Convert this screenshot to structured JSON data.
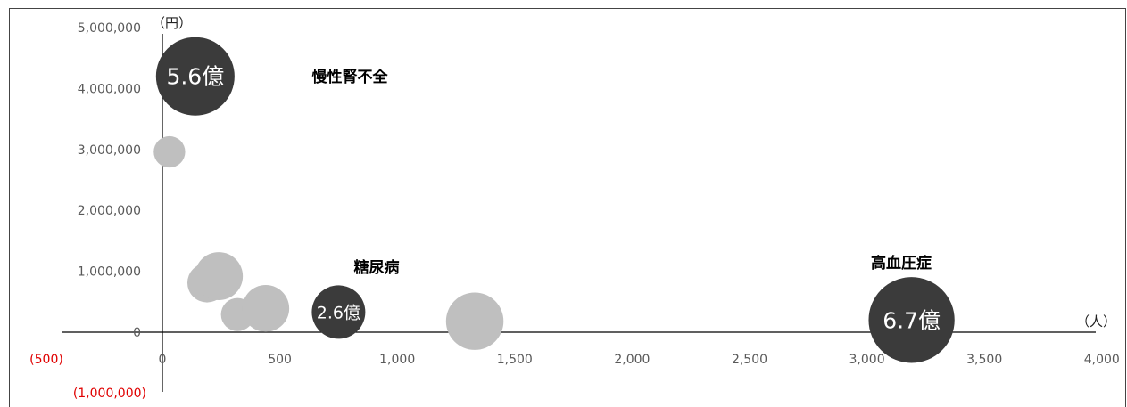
{
  "chart_data": {
    "type": "bubble",
    "x_unit": "（人）",
    "y_unit": "（円）",
    "xlim": [
      -500,
      4000
    ],
    "ylim": [
      -1000000,
      5000000
    ],
    "x_ticks": [
      "(500)",
      "0",
      "500",
      "1,000",
      "1,500",
      "2,000",
      "2,500",
      "3,000",
      "3,500",
      "4,000"
    ],
    "y_ticks": [
      "(1,000,000)",
      "0",
      "1,000,000",
      "2,000,000",
      "3,000,000",
      "4,000,000",
      "5,000,000"
    ],
    "colors": {
      "highlight": "#3b3b3b",
      "other": "#bfbfbf",
      "negative_tick": "#e00000",
      "tick": "#595959",
      "axis": "#000000"
    },
    "points": [
      {
        "x": 140,
        "y": 4200000,
        "size": 5.6,
        "highlight": true,
        "bubble_label": "5.6億",
        "callout": "慢性腎不全"
      },
      {
        "x": 750,
        "y": 330000,
        "size": 2.6,
        "highlight": true,
        "bubble_label": "2.6億",
        "callout": "糖尿病"
      },
      {
        "x": 3190,
        "y": 200000,
        "size": 6.7,
        "highlight": true,
        "bubble_label": "6.7億",
        "callout": "高血圧症"
      },
      {
        "x": 30,
        "y": 2960000,
        "size": 0.9,
        "highlight": false
      },
      {
        "x": 190,
        "y": 810000,
        "size": 1.4,
        "highlight": false
      },
      {
        "x": 240,
        "y": 920000,
        "size": 2.1,
        "highlight": false
      },
      {
        "x": 320,
        "y": 290000,
        "size": 1.0,
        "highlight": false
      },
      {
        "x": 440,
        "y": 390000,
        "size": 2.0,
        "highlight": false
      },
      {
        "x": 1330,
        "y": 180000,
        "size": 3.0,
        "highlight": false
      }
    ]
  }
}
